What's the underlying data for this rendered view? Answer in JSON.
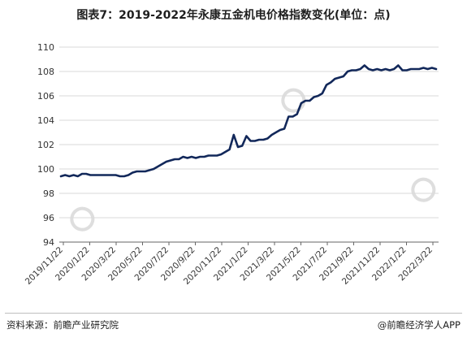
{
  "title": "图表7：2019-2022年永康五金机电价格指数变化(单位：点)",
  "footer": {
    "source": "资料来源：前瞻产业研究院",
    "brand": "@前瞻经济学人APP"
  },
  "colors": {
    "line": "#12285a",
    "grid": "#d9d9d9",
    "axis": "#666666"
  },
  "chart_data": {
    "type": "line",
    "title": "图表7：2019-2022年永康五金机电价格指数变化(单位：点)",
    "xlabel": "",
    "ylabel": "",
    "ylim": [
      94,
      110
    ],
    "yticks": [
      94,
      96,
      98,
      100,
      102,
      104,
      106,
      108,
      110
    ],
    "xticks": [
      "2019/11/22",
      "2020/1/22",
      "2020/3/22",
      "2020/5/22",
      "2020/7/22",
      "2020/9/22",
      "2020/11/22",
      "2021/1/22",
      "2021/3/22",
      "2021/5/22",
      "2021/7/22",
      "2021/9/22",
      "2021/11/22",
      "2022/1/22",
      "2022/3/22"
    ],
    "grid": true,
    "series": [
      {
        "values": [
          99.4,
          99.5,
          99.4,
          99.5,
          99.4,
          99.6,
          99.6,
          99.5,
          99.5,
          99.5,
          99.5,
          99.5,
          99.5,
          99.5,
          99.4,
          99.4,
          99.5,
          99.7,
          99.8,
          99.8,
          99.8,
          99.9,
          100.0,
          100.2,
          100.4,
          100.6,
          100.7,
          100.8,
          100.8,
          101.0,
          100.9,
          101.0,
          100.9,
          101.0,
          101.0,
          101.1,
          101.1,
          101.1,
          101.2,
          101.4,
          101.6,
          102.8,
          101.8,
          101.9,
          102.7,
          102.3,
          102.3,
          102.4,
          102.4,
          102.5,
          102.8,
          103.0,
          103.2,
          103.3,
          104.3,
          104.3,
          104.5,
          105.4,
          105.6,
          105.6,
          105.9,
          106.0,
          106.2,
          106.9,
          107.1,
          107.4,
          107.5,
          107.6,
          108.0,
          108.1,
          108.1,
          108.2,
          108.5,
          108.2,
          108.1,
          108.2,
          108.1,
          108.2,
          108.1,
          108.2,
          108.5,
          108.1,
          108.1,
          108.2,
          108.2,
          108.2,
          108.3,
          108.2,
          108.3,
          108.2
        ]
      }
    ]
  }
}
